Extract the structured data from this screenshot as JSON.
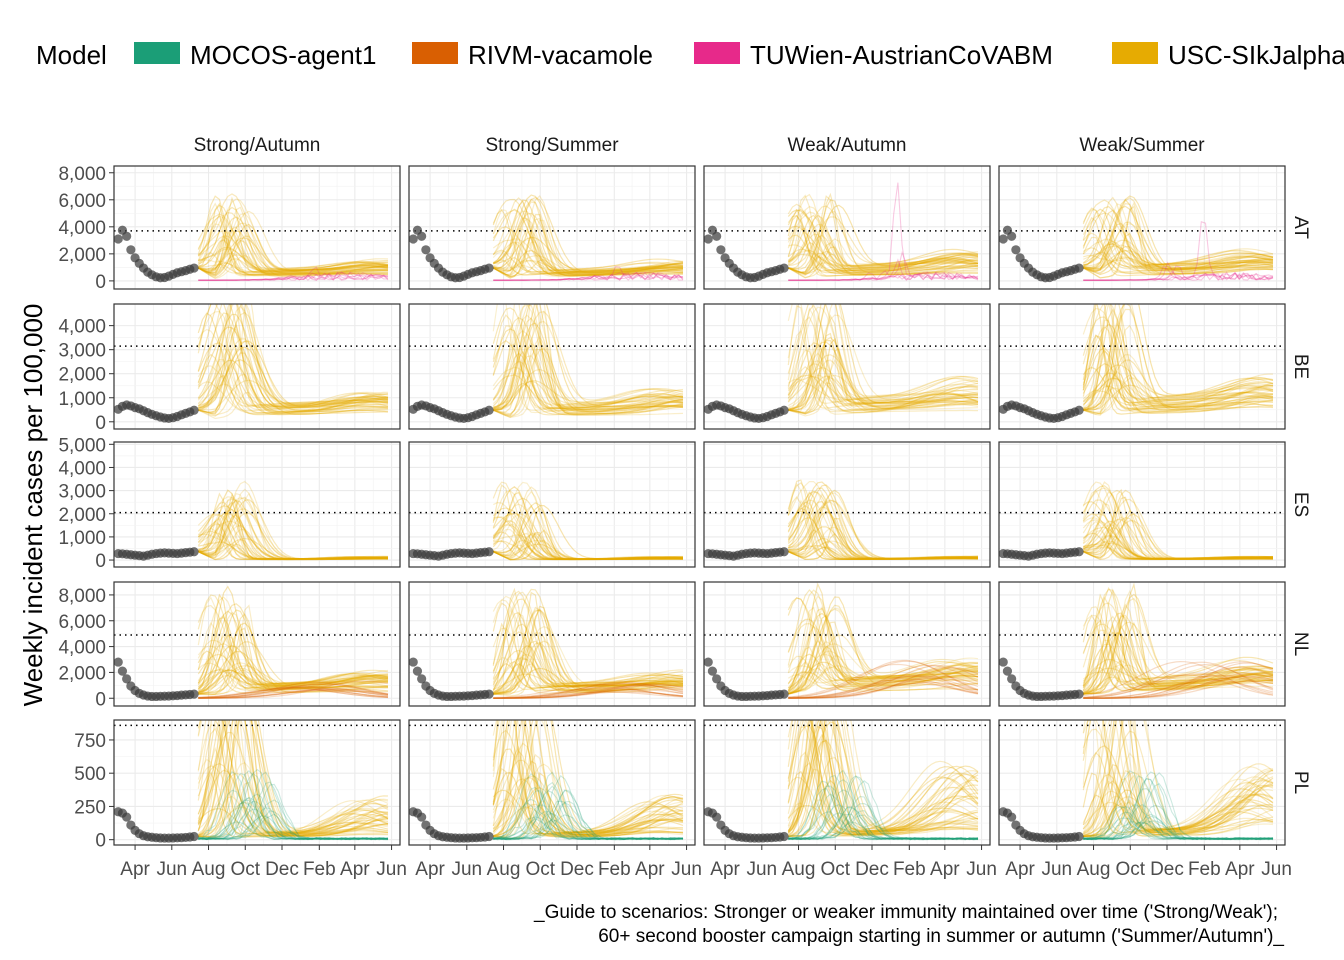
{
  "chart_data": {
    "type": "line",
    "legend": {
      "title": "Model",
      "position": "top",
      "entries": [
        {
          "name": "MOCOS-agent1",
          "color": "#1B9E77"
        },
        {
          "name": "RIVM-vacamole",
          "color": "#D95F02"
        },
        {
          "name": "TUWien-AustrianCoVABM",
          "color": "#E7298A"
        },
        {
          "name": "USC-SIkJalpha",
          "color": "#E6AB02"
        }
      ]
    },
    "ylabel": "Weekly incident cases per 100,000",
    "caption": [
      "_Guide to scenarios: Stronger or weaker immunity maintained over time ('Strong/Weak');",
      "60+ second booster campaign starting in summer or autumn ('Summer/Autumn')_"
    ],
    "facet_columns": [
      "Strong/Autumn",
      "Strong/Summer",
      "Weak/Autumn",
      "Weak/Summer"
    ],
    "x_ticks": [
      "Apr",
      "Jun",
      "Aug",
      "Oct",
      "Dec",
      "Feb",
      "Apr",
      "Jun"
    ],
    "x_tick_dates": [
      "2022-04-01",
      "2022-06-01",
      "2022-08-01",
      "2022-10-01",
      "2022-12-01",
      "2023-02-01",
      "2023-04-01",
      "2023-06-01"
    ],
    "x_range": [
      "2022-02-25",
      "2023-06-15"
    ],
    "grid": true,
    "rows": [
      {
        "country": "AT",
        "ylim": [
          -600,
          8500
        ],
        "yticks": [
          0,
          2000,
          4000,
          6000,
          8000
        ],
        "yticklabels": [
          "0",
          "2,000",
          "4,000",
          "6,000",
          "8,000"
        ],
        "reference_line": 3700,
        "observed": [
          3100,
          3750,
          3300,
          2300,
          1700,
          1300,
          950,
          650,
          450,
          300,
          230,
          250,
          350,
          480,
          600,
          680,
          760,
          860,
          950
        ],
        "peaks": [
          {
            "usc_mult": 1.0,
            "tu": 0.5,
            "rivm": 0
          },
          {
            "usc_mult": 0.9,
            "tu": 0.6,
            "rivm": 0
          },
          {
            "usc_mult": 1.05,
            "tu": 1.0,
            "rivm": 0
          },
          {
            "usc_mult": 1.0,
            "tu": 0.8,
            "rivm": 0
          }
        ]
      },
      {
        "country": "BE",
        "ylim": [
          -300,
          4900
        ],
        "yticks": [
          0,
          1000,
          2000,
          3000,
          4000
        ],
        "yticklabels": [
          "0",
          "1,000",
          "2,000",
          "3,000",
          "4,000"
        ],
        "reference_line": 3150,
        "observed": [
          520,
          640,
          700,
          660,
          590,
          540,
          460,
          380,
          310,
          250,
          200,
          160,
          140,
          170,
          220,
          290,
          350,
          410,
          480
        ]
      },
      {
        "country": "ES",
        "ylim": [
          -300,
          5100
        ],
        "yticks": [
          0,
          1000,
          2000,
          3000,
          4000,
          5000
        ],
        "yticklabels": [
          "0",
          "1,000",
          "2,000",
          "3,000",
          "4,000",
          "5,000"
        ],
        "reference_line": 2050,
        "observed": [
          280,
          270,
          250,
          230,
          210,
          190,
          170,
          210,
          250,
          280,
          300,
          310,
          300,
          290,
          280,
          300,
          320,
          340,
          360
        ]
      },
      {
        "country": "NL",
        "ylim": [
          -600,
          9000
        ],
        "yticks": [
          0,
          2000,
          4000,
          6000,
          8000
        ],
        "yticklabels": [
          "0",
          "2,000",
          "4,000",
          "6,000",
          "8,000"
        ],
        "reference_line": 4900,
        "observed": [
          2800,
          2100,
          1500,
          950,
          600,
          380,
          250,
          170,
          140,
          140,
          150,
          160,
          170,
          190,
          210,
          240,
          260,
          290,
          320
        ]
      },
      {
        "country": "PL",
        "ylim": [
          -40,
          900
        ],
        "yticks": [
          0,
          250,
          500,
          750
        ],
        "yticklabels": [
          "0",
          "250",
          "500",
          "750"
        ],
        "reference_line": 860,
        "observed": [
          210,
          200,
          170,
          110,
          70,
          45,
          30,
          22,
          18,
          15,
          13,
          12,
          12,
          13,
          14,
          15,
          17,
          20,
          24
        ]
      }
    ]
  }
}
